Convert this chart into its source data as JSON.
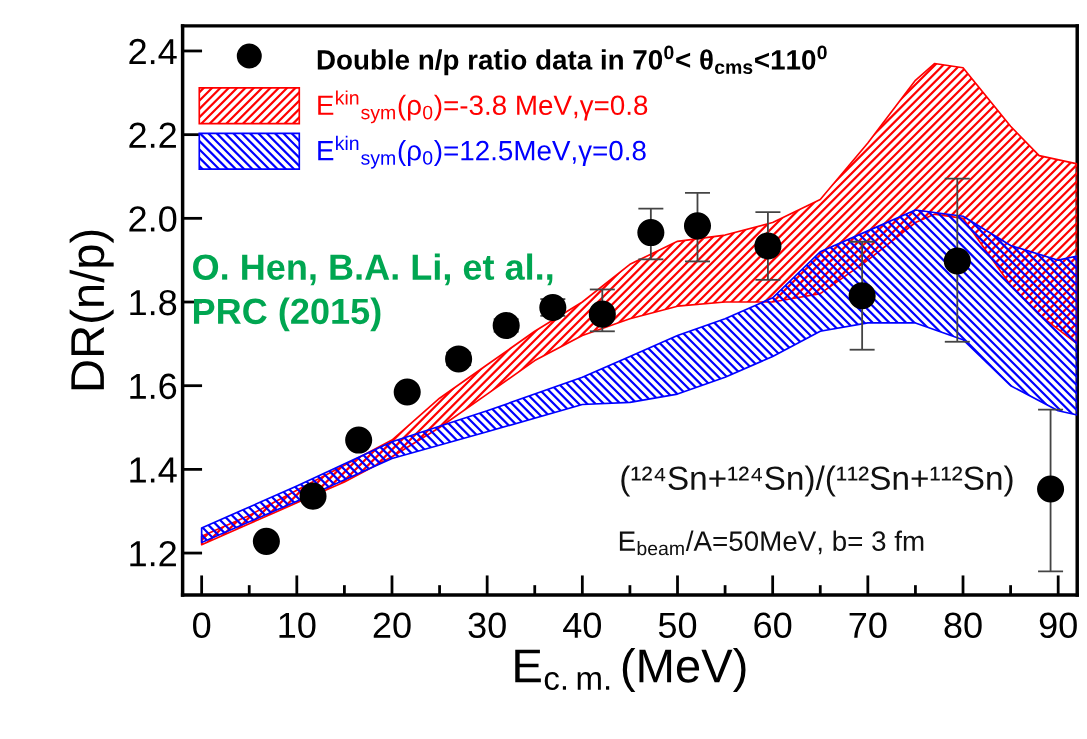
{
  "chart_data": {
    "type": "scatter",
    "xlabel": "E$_{c.m.}$(MeV)",
    "ylabel": "DR(n/p)",
    "xlim": [
      -2,
      92
    ],
    "ylim": [
      1.1,
      2.46
    ],
    "xticks": [
      0,
      10,
      20,
      30,
      40,
      50,
      60,
      70,
      80,
      90
    ],
    "yticks": [
      1.2,
      1.4,
      1.6,
      1.8,
      {
        "value": 2.0,
        "label": "2.0"
      },
      2.2,
      2.4
    ],
    "grid": false,
    "legend": "top left",
    "series": [
      {
        "name": "Double n/p ratio data in 70$^{0}$< θ$_{cms}$<110$^{0}$",
        "color": "#000000",
        "marker": "circle",
        "x": [
          6.8,
          11.7,
          16.5,
          21.6,
          27.0,
          32.0,
          36.9,
          42.1,
          47.2,
          52.1,
          59.5,
          69.4,
          79.4,
          89.2
        ],
        "values": [
          1.228,
          1.336,
          1.47,
          1.585,
          1.664,
          1.744,
          1.787,
          1.771,
          1.966,
          1.982,
          1.934,
          1.815,
          1.898,
          1.353
        ],
        "errors": [
          null,
          null,
          null,
          null,
          0.015,
          0.015,
          0.02,
          [
            1.73,
            1.83
          ],
          [
            1.902,
            2.023
          ],
          [
            1.897,
            2.061
          ],
          [
            1.853,
            2.015
          ],
          [
            1.686,
            1.944
          ],
          [
            1.705,
            2.095
          ],
          [
            1.156,
            1.543
          ]
        ]
      },
      {
        "name": "E$^{kin}$$_{sym}$(ρ$_{0}$)=-3.8 MeV,γ=0.8",
        "type": "area",
        "color": "#ff0000",
        "x": [
          0,
          5,
          10,
          15,
          20,
          25,
          30,
          35,
          40,
          45,
          50,
          55,
          60,
          65,
          70,
          75,
          77,
          80,
          85,
          88,
          92
        ],
        "values": [
          null,
          null,
          null,
          null,
          null,
          null,
          null,
          null,
          null,
          null,
          null,
          null,
          null,
          null,
          null,
          null,
          null,
          null,
          null,
          null,
          null
        ],
        "upper": [
          1.24,
          1.29,
          1.35,
          1.41,
          1.47,
          1.57,
          1.65,
          1.73,
          1.8,
          1.89,
          1.945,
          1.96,
          1.99,
          2.045,
          2.18,
          2.33,
          2.37,
          2.36,
          2.22,
          2.15,
          2.13
        ],
        "lower": [
          1.22,
          1.27,
          1.32,
          1.37,
          1.43,
          1.5,
          1.58,
          1.66,
          1.72,
          1.76,
          1.79,
          1.8,
          1.8,
          1.82,
          1.9,
          1.99,
          2.01,
          2.0,
          1.84,
          1.77,
          1.7
        ]
      },
      {
        "name": "E$^{kin}$$_{sym}$(ρ$_{0}$)=12.5MeV,γ=0.8",
        "type": "area",
        "color": "#0000ff",
        "x": [
          0,
          10,
          20,
          30,
          40,
          45,
          50,
          55,
          60,
          65,
          70,
          75,
          80,
          85,
          90,
          92
        ],
        "values": [
          null,
          null,
          null,
          null,
          null,
          null,
          null,
          null,
          null,
          null,
          null,
          null,
          null,
          null,
          null,
          null
        ],
        "upper": [
          1.26,
          1.36,
          1.466,
          1.54,
          1.62,
          1.67,
          1.72,
          1.76,
          1.81,
          1.92,
          1.97,
          2.02,
          2.005,
          1.935,
          1.9,
          1.91
        ],
        "lower": [
          1.225,
          1.324,
          1.426,
          1.49,
          1.555,
          1.56,
          1.58,
          1.62,
          1.67,
          1.73,
          1.75,
          1.75,
          1.71,
          1.6,
          1.54,
          1.53
        ]
      }
    ],
    "annotations": [
      "O. Hen, B.A. Li, et al.,\nPRC (2015)",
      "(¹²⁴Sn+¹²⁴Sn)/(¹¹²Sn+¹¹²Sn)",
      "E$_{beam}$/A=50MeV, b= 3 fm"
    ]
  }
}
